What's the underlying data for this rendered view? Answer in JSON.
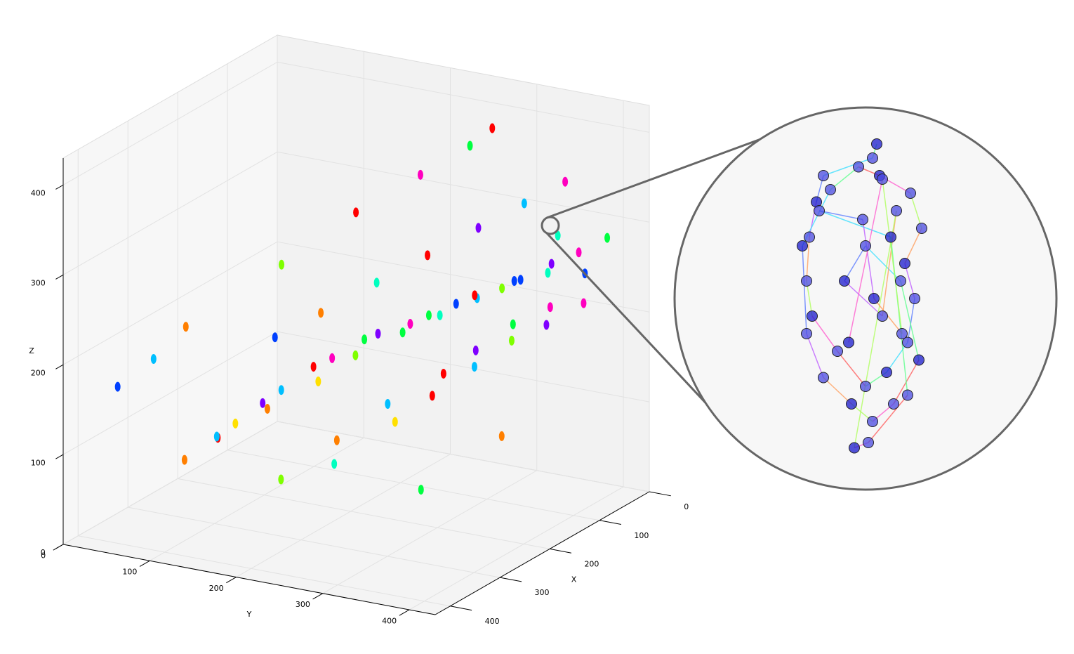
{
  "chart_data": [
    {
      "type": "scatter3d",
      "xlabel": "X",
      "ylabel": "Y",
      "zlabel": "Z",
      "xlim": [
        0,
        430
      ],
      "ylim": [
        0,
        430
      ],
      "zlim": [
        0,
        430
      ],
      "xticks": [
        0,
        100,
        200,
        300,
        400
      ],
      "yticks": [
        0,
        100,
        200,
        300,
        400
      ],
      "zticks": [
        0,
        100,
        200,
        300,
        400
      ],
      "grid": true,
      "points": {
        "x": [
          380,
          350,
          300,
          260,
          200,
          160,
          120,
          80,
          40,
          20,
          330,
          290,
          240,
          190,
          150,
          110,
          70,
          30,
          360,
          310,
          270,
          220,
          180,
          130,
          90,
          50,
          10,
          340,
          280,
          230,
          170,
          140,
          100,
          60,
          25,
          320,
          250,
          210,
          160,
          120,
          85,
          45,
          15,
          300,
          260,
          200,
          150,
          100,
          60,
          30,
          390,
          370,
          340,
          200,
          120,
          60,
          30,
          20,
          250,
          140
        ],
        "y": [
          150,
          190,
          220,
          240,
          260,
          280,
          300,
          320,
          340,
          360,
          120,
          150,
          180,
          210,
          240,
          270,
          300,
          330,
          100,
          130,
          160,
          190,
          220,
          250,
          280,
          310,
          330,
          200,
          230,
          260,
          290,
          310,
          330,
          350,
          370,
          250,
          280,
          300,
          320,
          340,
          360,
          380,
          390,
          170,
          200,
          230,
          260,
          290,
          320,
          350,
          40,
          70,
          90,
          120,
          160,
          200,
          240,
          260,
          310,
          340
        ],
        "z": [
          130,
          160,
          180,
          200,
          210,
          220,
          230,
          240,
          250,
          260,
          110,
          140,
          170,
          190,
          200,
          215,
          225,
          235,
          90,
          120,
          150,
          175,
          195,
          205,
          220,
          230,
          270,
          80,
          110,
          140,
          160,
          180,
          200,
          210,
          240,
          100,
          130,
          150,
          170,
          190,
          200,
          215,
          280,
          220,
          240,
          260,
          280,
          300,
          320,
          340,
          170,
          200,
          230,
          260,
          300,
          330,
          360,
          380,
          60,
          90
        ],
        "colors": [
          "#ff0000",
          "#ff7f00",
          "#ffe000",
          "#7fff00",
          "#00ff40",
          "#00ffbf",
          "#00bfff",
          "#0040ff",
          "#7f00ff",
          "#ff00bf",
          "#00bfff",
          "#7f00ff",
          "#ff0000",
          "#00ff40",
          "#ff00bf",
          "#0040ff",
          "#7fff00",
          "#00ffbf",
          "#ff7f00",
          "#ffe000",
          "#00bfff",
          "#ff00bf",
          "#7f00ff",
          "#00ff40",
          "#ff0000",
          "#0040ff",
          "#00ffbf",
          "#7fff00",
          "#ff7f00",
          "#00bfff",
          "#ff0000",
          "#7f00ff",
          "#00ff40",
          "#ff00bf",
          "#0040ff",
          "#00ffbf",
          "#ffe000",
          "#ff0000",
          "#00bfff",
          "#7fff00",
          "#7f00ff",
          "#ff00bf",
          "#00ff40",
          "#0040ff",
          "#ff7f00",
          "#00ffbf",
          "#ff0000",
          "#7f00ff",
          "#00bfff",
          "#ff00bf",
          "#0040ff",
          "#00bfff",
          "#ff7f00",
          "#7fff00",
          "#ff0000",
          "#ff00bf",
          "#00ff40",
          "#ff0000",
          "#00ff40",
          "#ff7f00"
        ]
      }
    },
    {
      "type": "scatter",
      "xlim": [
        -1,
        1
      ],
      "ylim": [
        -1,
        1
      ],
      "x": [
        0.08,
        0.05,
        -0.3,
        -0.35,
        -0.4,
        -0.42,
        -0.38,
        -0.2,
        0.0,
        0.15,
        0.3,
        0.35,
        0.28,
        0.4,
        0.32,
        0.1,
        -0.05,
        -0.25,
        -0.45,
        -0.42,
        -0.3,
        -0.1,
        0.05,
        0.2,
        0.38,
        0.25,
        0.0,
        -0.15,
        0.12,
        0.22,
        -0.08,
        0.02,
        0.3,
        0.18,
        -0.33,
        -0.02,
        0.06,
        0.26,
        0.12,
        -0.12
      ],
      "y": [
        0.88,
        0.8,
        0.7,
        0.55,
        0.35,
        0.1,
        -0.1,
        -0.3,
        -0.5,
        -0.42,
        -0.25,
        0.0,
        0.2,
        0.4,
        0.6,
        0.7,
        0.75,
        0.62,
        0.3,
        -0.2,
        -0.45,
        -0.6,
        -0.7,
        -0.6,
        -0.35,
        0.1,
        0.3,
        0.1,
        -0.1,
        0.5,
        -0.85,
        -0.82,
        -0.55,
        0.35,
        0.5,
        0.45,
        0.0,
        -0.2,
        0.68,
        -0.25
      ]
    }
  ]
}
